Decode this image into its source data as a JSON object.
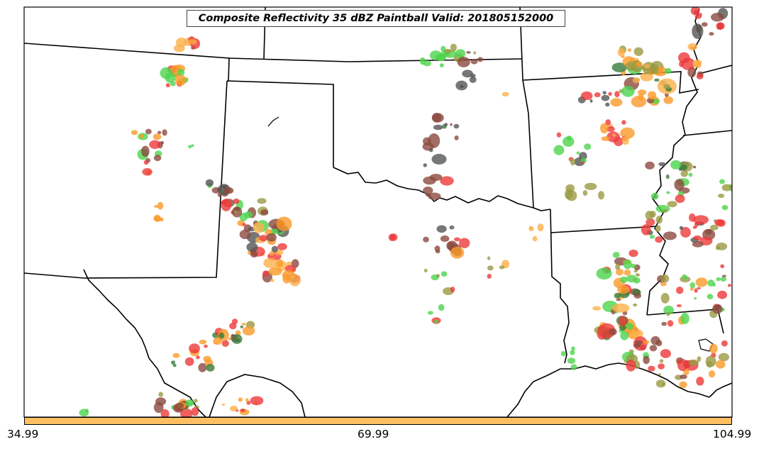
{
  "title": "Composite Reflectivity 35 dBZ Paintball Valid: 201805152000",
  "colorbar": {
    "color": "#FDBF61",
    "ticks": [
      "34.99",
      "69.99",
      "104.99"
    ]
  },
  "colors": {
    "green": "#4ED44E",
    "red": "#EE3A3A",
    "orange": "#FB9A29",
    "light_orange": "#FDB04A",
    "dark_gray": "#555555",
    "brown": "#8B4A3E",
    "olive": "#9A9A44",
    "dark_green": "#3A7A3A"
  }
}
